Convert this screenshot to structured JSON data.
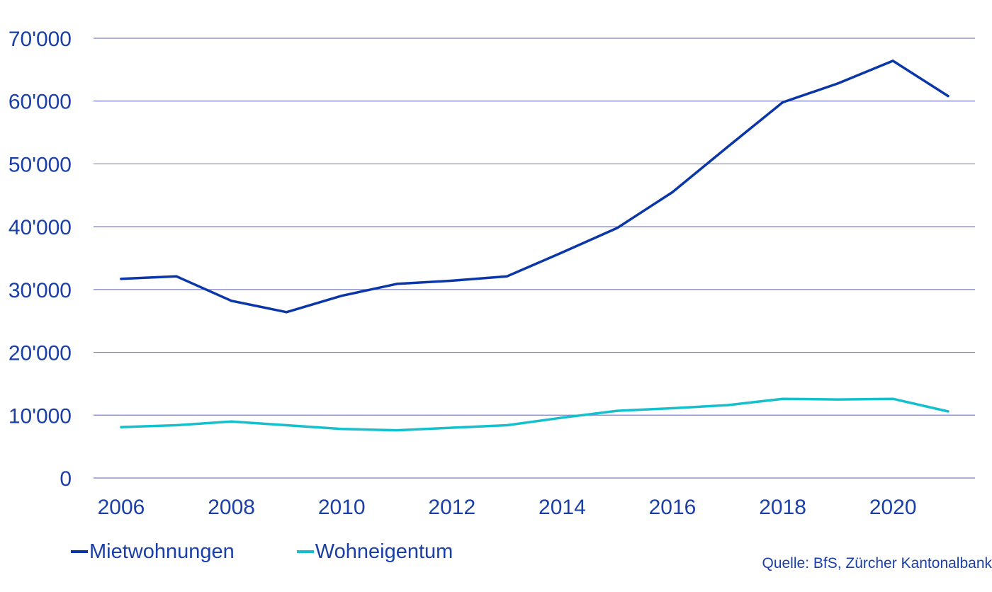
{
  "chart_data": {
    "type": "line",
    "title": "",
    "xlabel": "",
    "ylabel": "",
    "x": [
      2006,
      2007,
      2008,
      2009,
      2010,
      2011,
      2012,
      2013,
      2014,
      2015,
      2016,
      2017,
      2018,
      2019,
      2020,
      2021
    ],
    "series": [
      {
        "name": "Mietwohnungen",
        "color": "#0a36a8",
        "values": [
          31700,
          32100,
          28200,
          26400,
          29000,
          30900,
          31400,
          32100,
          35900,
          39800,
          45500,
          52700,
          59800,
          62800,
          66400,
          60800
        ]
      },
      {
        "name": "Wohneigentum",
        "color": "#14c0cc",
        "values": [
          8100,
          8400,
          9000,
          8400,
          7800,
          7600,
          8000,
          8400,
          9600,
          10700,
          11100,
          11600,
          12600,
          12500,
          12600,
          10600
        ]
      }
    ],
    "xlim": [
      2005.5,
      2021.5
    ],
    "ylim": [
      0,
      70000
    ],
    "x_ticks": [
      2006,
      2008,
      2010,
      2012,
      2014,
      2016,
      2018,
      2020
    ],
    "x_tick_labels": [
      "2006",
      "2008",
      "2010",
      "2012",
      "2014",
      "2016",
      "2018",
      "2020"
    ],
    "y_ticks": [
      0,
      10000,
      20000,
      30000,
      40000,
      50000,
      60000,
      70000
    ],
    "y_tick_labels": [
      "0",
      "10'000",
      "20'000",
      "30'000",
      "40'000",
      "50'000",
      "60'000",
      "70'000"
    ],
    "grid": true,
    "legend_position": "bottom-left",
    "text_color": "#1a3fa8",
    "grid_color": "#7b7fc4"
  },
  "legend": {
    "items": [
      {
        "label": "Mietwohnungen",
        "color": "#0a36a8"
      },
      {
        "label": "Wohneigentum",
        "color": "#14c0cc"
      }
    ]
  },
  "source": "Quelle: BfS, Zürcher Kantonalbank"
}
